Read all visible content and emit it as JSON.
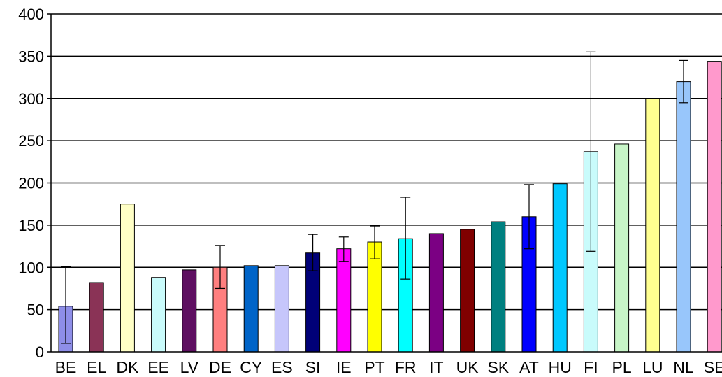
{
  "chart_data": {
    "type": "bar",
    "title": "",
    "xlabel": "",
    "ylabel": "",
    "ylim": [
      0,
      400
    ],
    "yticks": [
      0,
      50,
      100,
      150,
      200,
      250,
      300,
      350,
      400
    ],
    "grid": "horizontal",
    "legend": "none",
    "categories": [
      "BE",
      "EL",
      "DK",
      "EE",
      "LV",
      "DE",
      "CY",
      "ES",
      "SI",
      "IE",
      "PT",
      "FR",
      "IT",
      "UK",
      "SK",
      "AT",
      "HU",
      "FI",
      "PL",
      "LU",
      "NL",
      "SE"
    ],
    "values": [
      54,
      82,
      175,
      88,
      97,
      100,
      102,
      102,
      117,
      122,
      130,
      134,
      140,
      145,
      154,
      160,
      199,
      237,
      246,
      300,
      320,
      344
    ],
    "error_low": [
      10,
      null,
      null,
      null,
      null,
      75,
      null,
      null,
      96,
      107,
      110,
      86,
      null,
      null,
      null,
      122,
      null,
      119,
      null,
      null,
      295,
      null
    ],
    "error_high": [
      101,
      null,
      null,
      null,
      null,
      126,
      null,
      null,
      139,
      136,
      149,
      183,
      null,
      null,
      null,
      198,
      null,
      355,
      null,
      null,
      345,
      null
    ],
    "colors": [
      "#8e8ee8",
      "#8a3356",
      "#ffffc6",
      "#c9fbfb",
      "#5e0f61",
      "#ff7f7f",
      "#0064c8",
      "#c6c6fb",
      "#000078",
      "#ff00ff",
      "#ffff00",
      "#00ffff",
      "#7b0083",
      "#800000",
      "#008080",
      "#0000ff",
      "#00c8ff",
      "#c9fbfb",
      "#c8f5c8",
      "#ffff90",
      "#98c6fb",
      "#ff99cc"
    ]
  }
}
